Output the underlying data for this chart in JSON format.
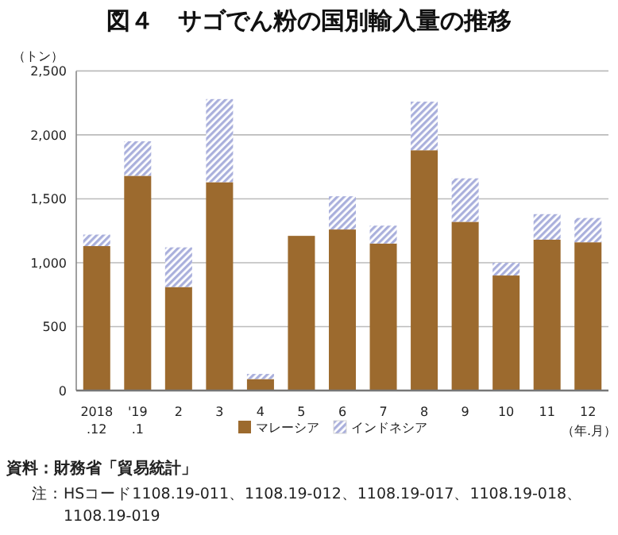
{
  "chart_data": {
    "type": "bar",
    "title": "図４　サゴでん粉の国別輸入量の推移",
    "ylabel": "（トン）",
    "xlabel": "（年.月）",
    "categories": [
      "2018\n.12",
      "'19\n.1",
      "2",
      "3",
      "4",
      "5",
      "6",
      "7",
      "8",
      "9",
      "10",
      "11",
      "12"
    ],
    "stacked": true,
    "series": [
      {
        "name": "マレーシア",
        "color": "#9c6a2e",
        "values": [
          1130,
          1680,
          810,
          1630,
          90,
          1210,
          1260,
          1150,
          1880,
          1320,
          900,
          1180,
          1160
        ]
      },
      {
        "name": "インドネシア",
        "color": "#aab0dc",
        "values": [
          90,
          270,
          310,
          650,
          40,
          0,
          260,
          140,
          380,
          340,
          100,
          200,
          190
        ]
      }
    ],
    "ylim": [
      0,
      2500
    ],
    "yticks": [
      {
        "value": 0,
        "label": "0"
      },
      {
        "value": 500,
        "label": "500"
      },
      {
        "value": 1000,
        "label": "1,000"
      },
      {
        "value": 1500,
        "label": "1,500"
      },
      {
        "value": 2000,
        "label": "2,000"
      },
      {
        "value": 2500,
        "label": "2,500"
      }
    ],
    "grid": "y",
    "legend": "bottom",
    "annotations": [
      "資料：財務省「貿易統計」",
      "注：HSコード1108.19-011、1108.19-012、1108.19-017、1108.19-018、1108.19-019"
    ]
  }
}
